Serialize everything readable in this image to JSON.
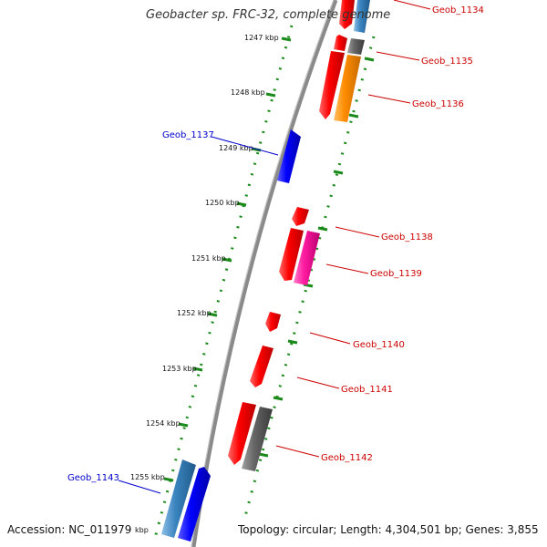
{
  "header": {
    "title": "Geobacter sp. FRC-32, complete genome"
  },
  "footer": {
    "accession": "Accession: NC_011979",
    "topology": "Topology: circular; Length: 4,304,501 bp; Genes: 3,855"
  },
  "map": {
    "scale_unit": "kbp",
    "ticks": [
      "1247 kbp",
      "1248 kbp",
      "1249 kbp",
      "1250 kbp",
      "1251 kbp",
      "1252 kbp",
      "1253 kbp",
      "1254 kbp",
      "1255 kbp"
    ],
    "colors": {
      "backbone": "#8a8a8a",
      "track_dots": "#1a8a1a",
      "label_forward": "#cc0000",
      "label_reverse": "#0000cc",
      "red": "#ff0000",
      "blue": "#0000ff",
      "steelblue": "#3a84bf",
      "gray": "#666666",
      "orange": "#ff8c00",
      "magenta": "#ff1aa0"
    },
    "genes": [
      {
        "label": "Geob_1134",
        "color": "red"
      },
      {
        "label": "Geob_1135",
        "color": "red"
      },
      {
        "label": "Geob_1136",
        "color": "orange"
      },
      {
        "label": "Geob_1137",
        "color": "blue"
      },
      {
        "label": "Geob_1138",
        "color": "red"
      },
      {
        "label": "Geob_1139",
        "color": "magenta"
      },
      {
        "label": "Geob_1140",
        "color": "red"
      },
      {
        "label": "Geob_1141",
        "color": "red"
      },
      {
        "label": "Geob_1142",
        "color": "gray"
      },
      {
        "label": "Geob_1143",
        "color": "steelblue"
      }
    ]
  }
}
